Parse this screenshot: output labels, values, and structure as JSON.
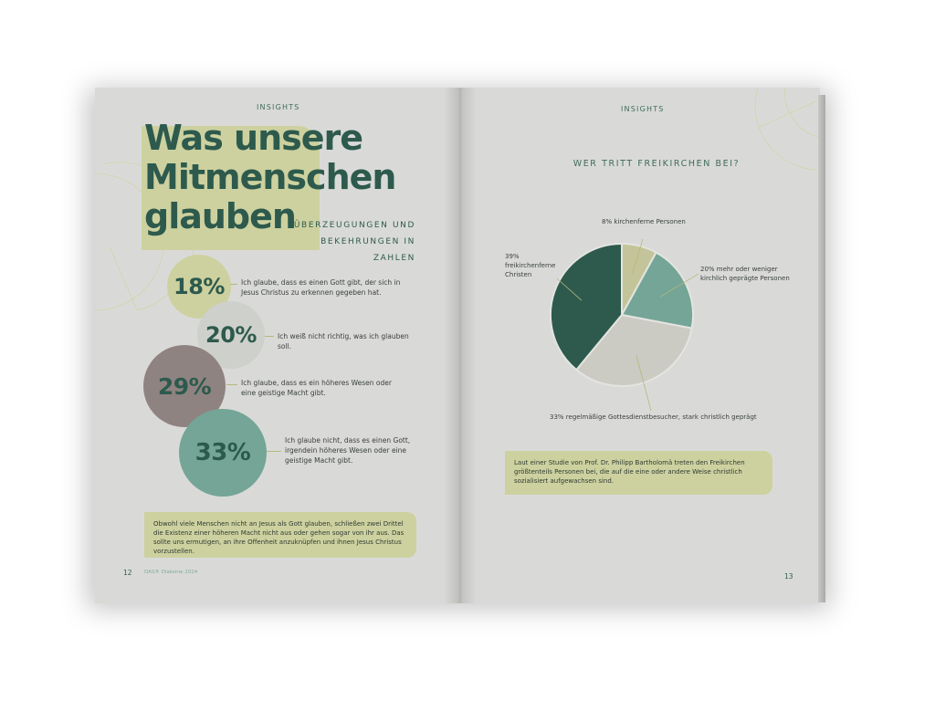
{
  "left_page": {
    "kicker": "INSIGHTS",
    "title_lines": [
      "Was unsere",
      "Mitmenschen",
      "glauben"
    ],
    "subtitle_lines": [
      "ÜBERZEUGUNGEN UND",
      "BEKEHRUNGEN IN ZAHLEN"
    ],
    "stats": [
      {
        "value": "18%",
        "text": "Ich glaube, dass es einen Gott gibt, der sich in Jesus Christus zu erkennen gegeben hat.",
        "color": "#cdd19f"
      },
      {
        "value": "20%",
        "text": "Ich weiß nicht richtig, was ich glauben soll.",
        "color": "#ced0cb"
      },
      {
        "value": "29%",
        "text": "Ich glaube, dass es ein höheres Wesen oder eine geistige Macht gibt.",
        "color": "#8f8382"
      },
      {
        "value": "33%",
        "text": "Ich glaube nicht, dass es einen Gott, irgendein höheres Wesen oder eine geistige Macht gibt.",
        "color": "#74a597"
      }
    ],
    "note": "Obwohl viele Menschen nicht an Jesus als Gott glauben, schließen zwei Drittel die Existenz einer höheren Macht nicht aus oder gehen sogar von ihr aus. Das sollte uns ermutigen, an ihre Offenheit anzuknüpfen und ihnen Jesus Christus vorzustellen.",
    "page_number": "12",
    "footer_credit": "DAS® Diakonie 2024"
  },
  "right_page": {
    "kicker": "INSIGHTS",
    "chart_title": "WER TRITT FREIKIRCHEN BEI?",
    "note": "Laut einer Studie von Prof. Dr. Philipp Bartholomä treten den Freikirchen größtenteils Personen bei, die auf die eine oder andere Weise christlich sozialisiert aufgewachsen sind.",
    "page_number": "13"
  },
  "chart_data": {
    "type": "pie",
    "title": "WER TRITT FREIKIRCHEN BEI?",
    "slices": [
      {
        "label": "8% kirchenferne Personen",
        "value": 8,
        "color": "#c4c49a"
      },
      {
        "label": "20% mehr oder weniger kirchlich geprägte Personen",
        "value": 20,
        "color": "#74a597"
      },
      {
        "label": "33% regelmäßige Gottesdienstbesucher, stark christlich geprägt",
        "value": 33,
        "color": "#cbcbc4"
      },
      {
        "label": "39% freikirchenferne Christen",
        "value": 39,
        "color": "#2d5a4d"
      }
    ]
  },
  "colors": {
    "dark_green": "#2d5a4d",
    "olive_block": "#cdd19f",
    "page_bg": "#d9dad8"
  }
}
